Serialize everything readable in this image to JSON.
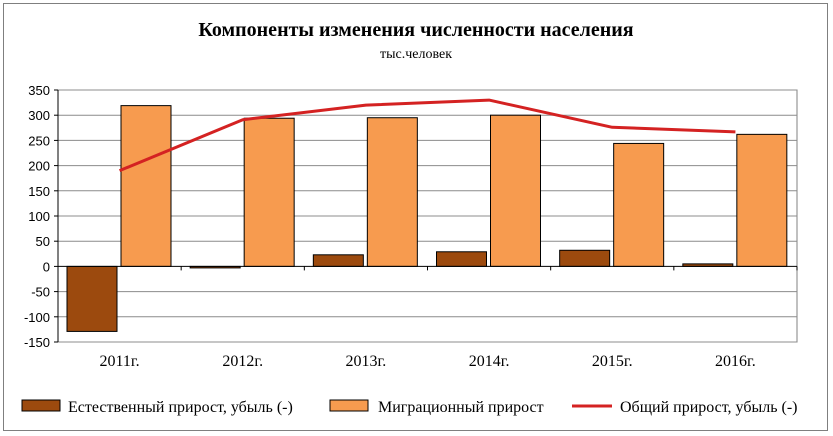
{
  "chart_data": {
    "type": "bar",
    "title": "Компоненты изменения численности населения",
    "subtitle": "тыс.человек",
    "categories": [
      "2011г.",
      "2012г.",
      "2013г.",
      "2014г.",
      "2015г.",
      "2016г."
    ],
    "ylim": [
      -150,
      350
    ],
    "yticks": [
      350,
      300,
      250,
      200,
      150,
      100,
      50,
      0,
      -50,
      -100,
      -150
    ],
    "grid": true,
    "legend_position": "bottom",
    "series": [
      {
        "name": "Естественный прирост, убыль (-)",
        "kind": "bar",
        "color": "#9c4a0e",
        "values": [
          -129,
          -3,
          23,
          29,
          32,
          5
        ]
      },
      {
        "name": "Миграционный прирост",
        "kind": "bar",
        "color": "#f79b4f",
        "values": [
          319,
          294,
          295,
          300,
          244,
          262
        ]
      },
      {
        "name": "Общий прирост, убыль (-)",
        "kind": "line",
        "color": "#d42222",
        "values": [
          190,
          291,
          320,
          330,
          276,
          267
        ]
      }
    ]
  }
}
